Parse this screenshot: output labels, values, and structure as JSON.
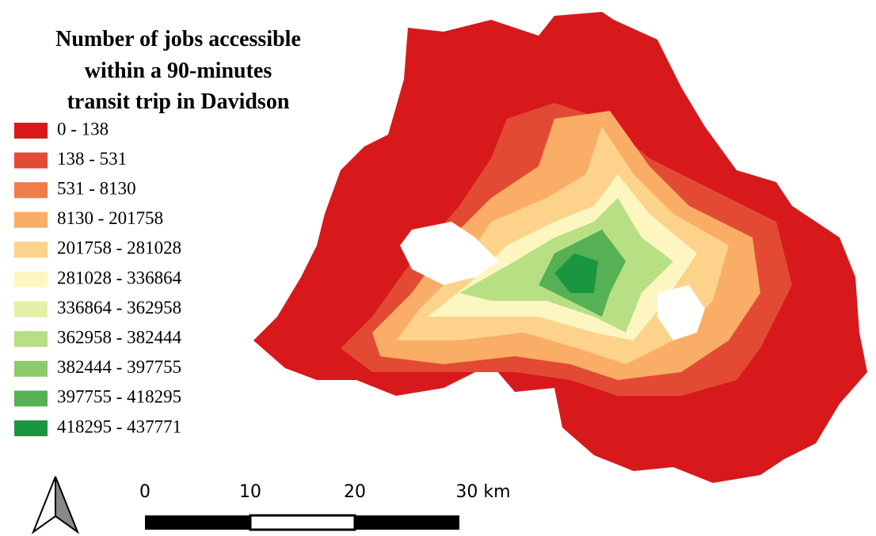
{
  "title": [
    "Number of jobs accessible",
    "within a 90-minutes",
    "transit trip in Davidson"
  ],
  "legend": [
    {
      "label": "0 - 138",
      "color": "#d7191c"
    },
    {
      "label": "138 - 531",
      "color": "#e34a33"
    },
    {
      "label": "531 - 8130",
      "color": "#f07c4a"
    },
    {
      "label": "8130 - 201758",
      "color": "#f9ad66"
    },
    {
      "label": "201758 - 281028",
      "color": "#fdd28a"
    },
    {
      "label": "281028 - 336864",
      "color": "#fdf6c0"
    },
    {
      "label": "336864 - 362958",
      "color": "#e3f1a8"
    },
    {
      "label": "362958 - 382444",
      "color": "#b8df84"
    },
    {
      "label": "382444 - 397755",
      "color": "#8cca6a"
    },
    {
      "label": "397755 - 418295",
      "color": "#55b153"
    },
    {
      "label": "418295 - 437771",
      "color": "#1a9641"
    }
  ],
  "scale_bar": [
    "0",
    "10",
    "20",
    "30 km"
  ]
}
